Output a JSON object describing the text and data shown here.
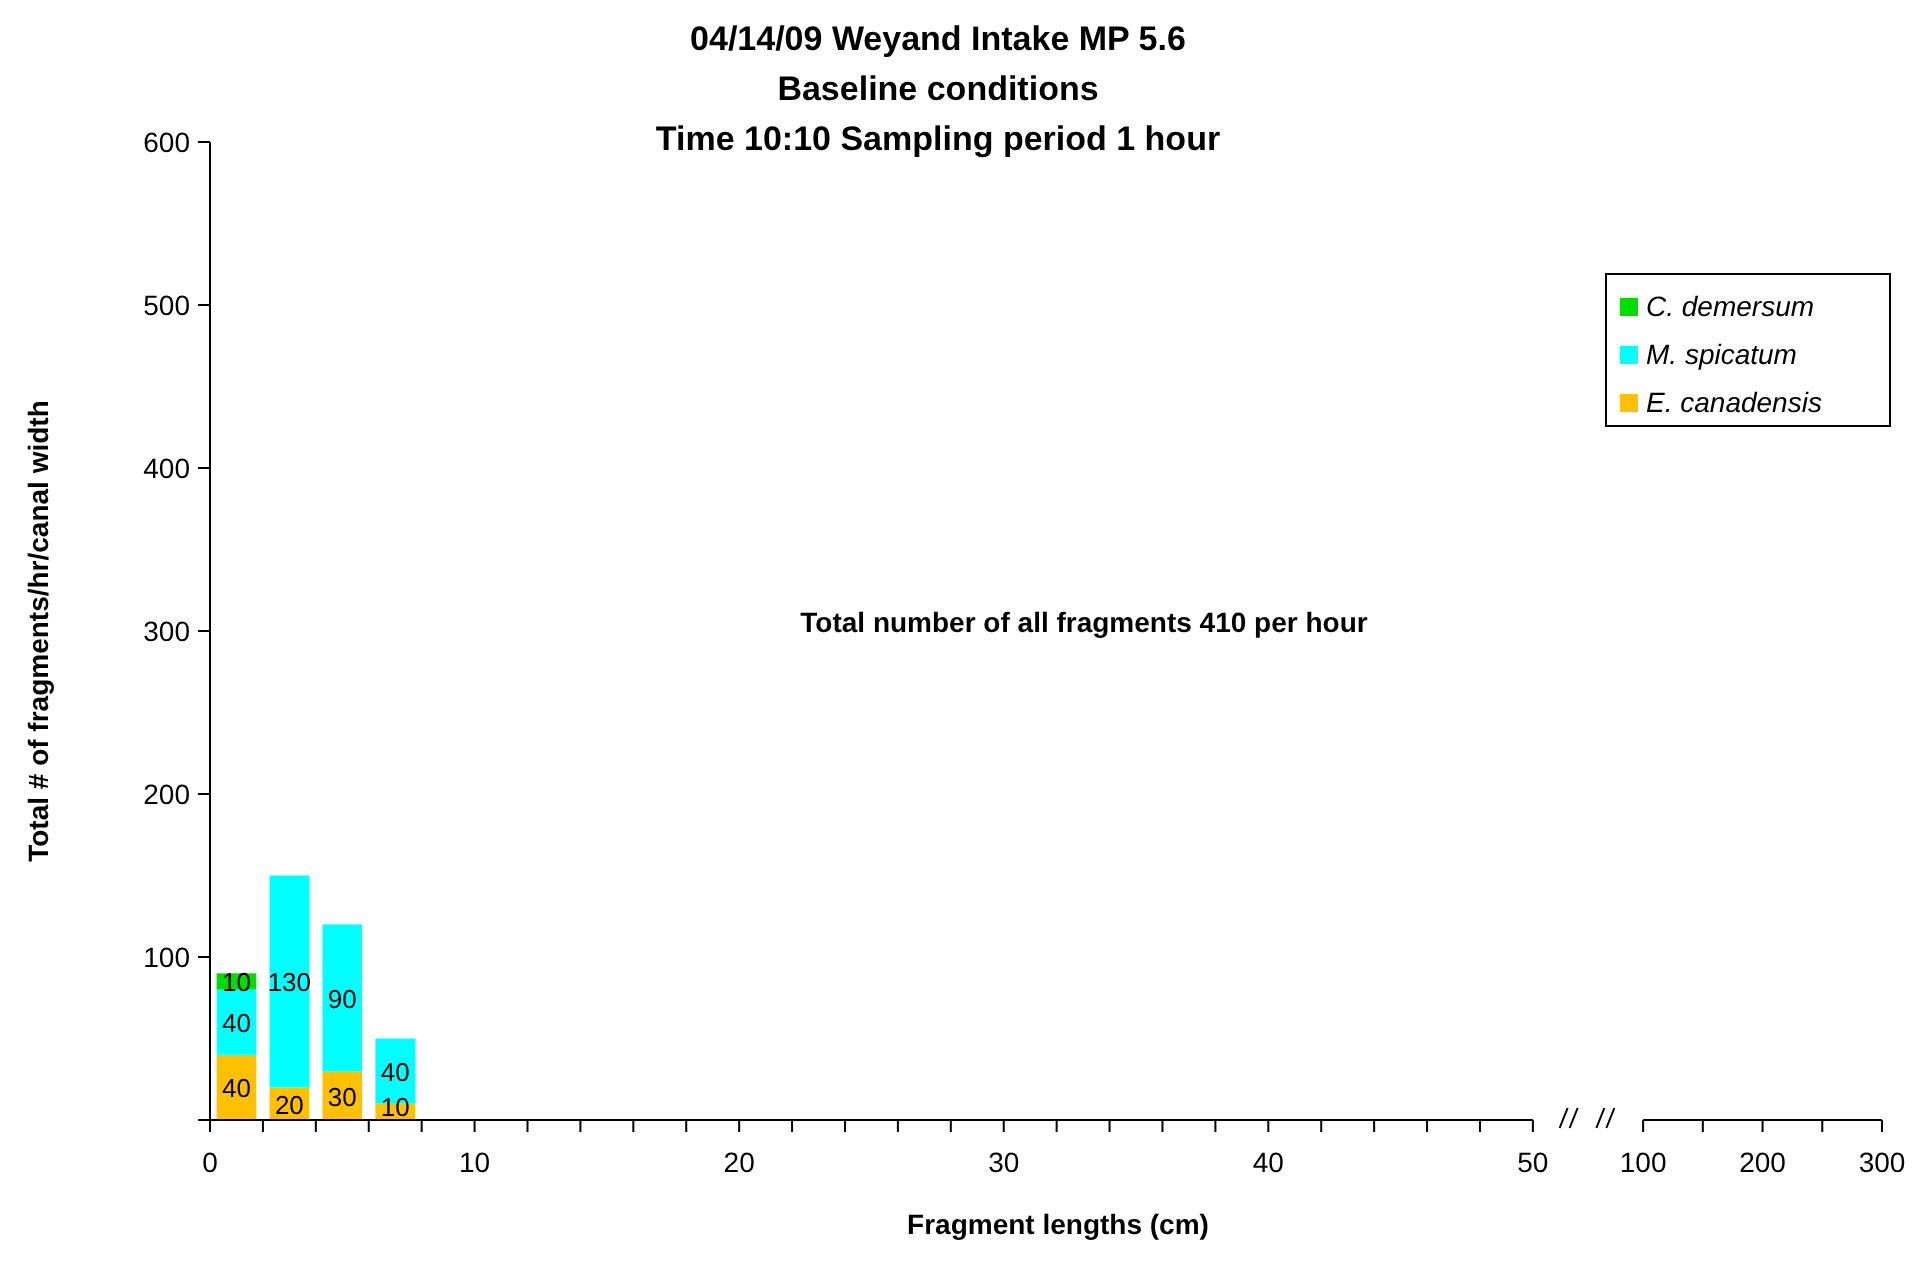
{
  "chart_data": {
    "type": "bar",
    "title": "04/14/09   Weyand Intake   MP 5.6\nBaseline conditions\nTime 10:10   Sampling period 1 hour",
    "xlabel": "Fragment lengths (cm)",
    "ylabel": "Total # of fragments/hr/canal width",
    "x": [
      1,
      3,
      5,
      7
    ],
    "stacked": true,
    "series": [
      {
        "name": "E. canadensis",
        "color": "#ffc000",
        "values": [
          40,
          20,
          30,
          10
        ],
        "value_labels": [
          "40",
          "20",
          "30",
          "10"
        ]
      },
      {
        "name": "M. spicatum",
        "color": "#00ffff",
        "values": [
          40,
          130,
          90,
          40
        ],
        "value_labels": [
          "40",
          "130",
          "90",
          "40"
        ]
      },
      {
        "name": "C. demersum",
        "color": "#00dd00",
        "values": [
          10,
          0,
          0,
          0
        ],
        "value_labels": [
          "10",
          null,
          null,
          null
        ]
      }
    ],
    "xlim": [
      0,
      50
    ],
    "xticks": [
      0,
      {
        "value": 2,
        "label": null
      },
      {
        "value": 4,
        "label": null
      },
      {
        "value": 6,
        "label": null
      },
      {
        "value": 8,
        "label": null
      },
      10,
      {
        "value": 12,
        "label": null
      },
      {
        "value": 14,
        "label": null
      },
      {
        "value": 16,
        "label": null
      },
      {
        "value": 18,
        "label": null
      },
      20,
      {
        "value": 22,
        "label": null
      },
      {
        "value": 24,
        "label": null
      },
      {
        "value": 26,
        "label": null
      },
      {
        "value": 28,
        "label": null
      },
      30,
      {
        "value": 32,
        "label": null
      },
      {
        "value": 34,
        "label": null
      },
      {
        "value": 36,
        "label": null
      },
      {
        "value": 38,
        "label": null
      },
      40,
      {
        "value": 42,
        "label": null
      },
      {
        "value": 44,
        "label": null
      },
      {
        "value": 46,
        "label": null
      },
      {
        "value": 48,
        "label": null
      },
      50
    ],
    "x2lim": [
      100,
      300
    ],
    "x2ticks": [
      100,
      {
        "value": 150,
        "label": null
      },
      200,
      {
        "value": 250,
        "label": null
      },
      300
    ],
    "ylim": [
      0,
      600
    ],
    "yticks": [
      {
        "value": 0,
        "label": null
      },
      100,
      200,
      300,
      400,
      500,
      600
    ],
    "annotations": [
      {
        "text": "Total number of all fragments 410 per hour"
      }
    ],
    "legend": "top right",
    "grid": false
  }
}
